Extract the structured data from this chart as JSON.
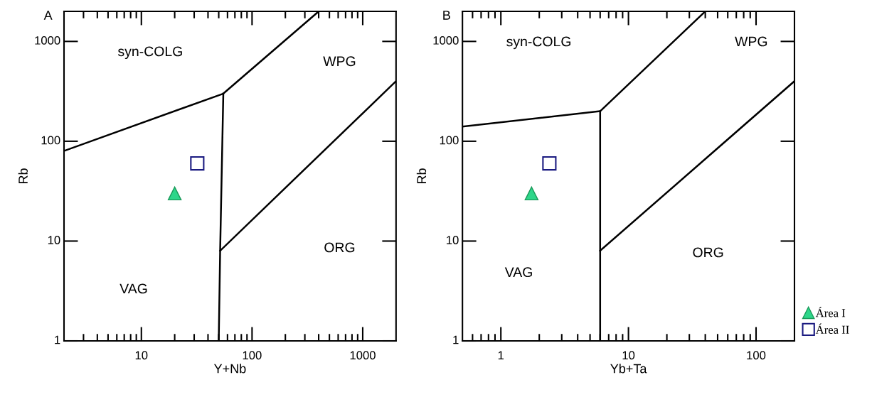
{
  "chart_data": [
    {
      "type": "scatter",
      "title": "A",
      "xlabel": "Y+Nb",
      "ylabel": "Rb",
      "log": "xy",
      "xlim": [
        2,
        2000
      ],
      "ylim": [
        1,
        2000
      ],
      "xticks": [
        {
          "value": 3,
          "label": null
        },
        {
          "value": 4,
          "label": null
        },
        {
          "value": 5,
          "label": null
        },
        {
          "value": 6,
          "label": null
        },
        {
          "value": 7,
          "label": null
        },
        {
          "value": 8,
          "label": null
        },
        {
          "value": 9,
          "label": null
        },
        10,
        {
          "value": 20,
          "label": null
        },
        {
          "value": 30,
          "label": null
        },
        {
          "value": 40,
          "label": null
        },
        {
          "value": 50,
          "label": null
        },
        {
          "value": 60,
          "label": null
        },
        {
          "value": 70,
          "label": null
        },
        {
          "value": 80,
          "label": null
        },
        {
          "value": 90,
          "label": null
        },
        100,
        {
          "value": 200,
          "label": null
        },
        {
          "value": 300,
          "label": null
        },
        {
          "value": 400,
          "label": null
        },
        {
          "value": 500,
          "label": null
        },
        {
          "value": 600,
          "label": null
        },
        {
          "value": 700,
          "label": null
        },
        {
          "value": 800,
          "label": null
        },
        {
          "value": 900,
          "label": null
        },
        1000
      ],
      "yticks": [
        1,
        10,
        100,
        1000
      ],
      "series": [
        {
          "type": "line",
          "color": "#000000",
          "x": [
            2,
            55,
            400
          ],
          "values": [
            80,
            300,
            2000
          ]
        },
        {
          "type": "line",
          "color": "#000000",
          "x": [
            55,
            51.5,
            50
          ],
          "values": [
            300,
            8,
            1
          ]
        },
        {
          "type": "line",
          "color": "#000000",
          "x": [
            51.5,
            2000
          ],
          "values": [
            8,
            400
          ]
        },
        {
          "marker": "triangle",
          "color": "#2ed68a",
          "x": [
            20
          ],
          "values": [
            30
          ]
        },
        {
          "marker": "square",
          "color": "#1a1a80",
          "x": [
            32
          ],
          "values": [
            60
          ]
        }
      ],
      "annotations": [
        "syn-COLG",
        "WPG",
        "ORG",
        "VAG"
      ]
    },
    {
      "type": "scatter",
      "title": "B",
      "xlabel": "Yb+Ta",
      "ylabel": "Rb",
      "log": "xy",
      "xlim": [
        0.5,
        200
      ],
      "ylim": [
        1,
        2000
      ],
      "xticks": [
        {
          "value": 0.6,
          "label": null
        },
        {
          "value": 0.7,
          "label": null
        },
        {
          "value": 0.8,
          "label": null
        },
        {
          "value": 0.9,
          "label": null
        },
        1,
        {
          "value": 2,
          "label": null
        },
        {
          "value": 3,
          "label": null
        },
        {
          "value": 4,
          "label": null
        },
        {
          "value": 5,
          "label": null
        },
        {
          "value": 6,
          "label": null
        },
        {
          "value": 7,
          "label": null
        },
        {
          "value": 8,
          "label": null
        },
        {
          "value": 9,
          "label": null
        },
        10,
        {
          "value": 20,
          "label": null
        },
        {
          "value": 30,
          "label": null
        },
        {
          "value": 40,
          "label": null
        },
        {
          "value": 50,
          "label": null
        },
        {
          "value": 60,
          "label": null
        },
        {
          "value": 70,
          "label": null
        },
        {
          "value": 80,
          "label": null
        },
        {
          "value": 90,
          "label": null
        },
        100
      ],
      "yticks": [
        1,
        10,
        100,
        1000
      ],
      "legend": "bottom right",
      "series": [
        {
          "type": "line",
          "color": "#000000",
          "x": [
            0.5,
            6,
            40
          ],
          "values": [
            140,
            200,
            2000
          ]
        },
        {
          "type": "line",
          "color": "#000000",
          "x": [
            6,
            6
          ],
          "values": [
            200,
            1
          ]
        },
        {
          "type": "line",
          "color": "#000000",
          "x": [
            6,
            200
          ],
          "values": [
            8,
            400
          ]
        },
        {
          "name": "Área I",
          "marker": "triangle",
          "color": "#2ed68a",
          "x": [
            1.74
          ],
          "values": [
            30
          ]
        },
        {
          "name": "Área II",
          "marker": "square",
          "color": "#1a1a80",
          "x": [
            2.4
          ],
          "values": [
            60
          ]
        }
      ],
      "annotations": [
        "syn-COLG",
        "WPG",
        "ORG",
        "VAG"
      ]
    }
  ]
}
